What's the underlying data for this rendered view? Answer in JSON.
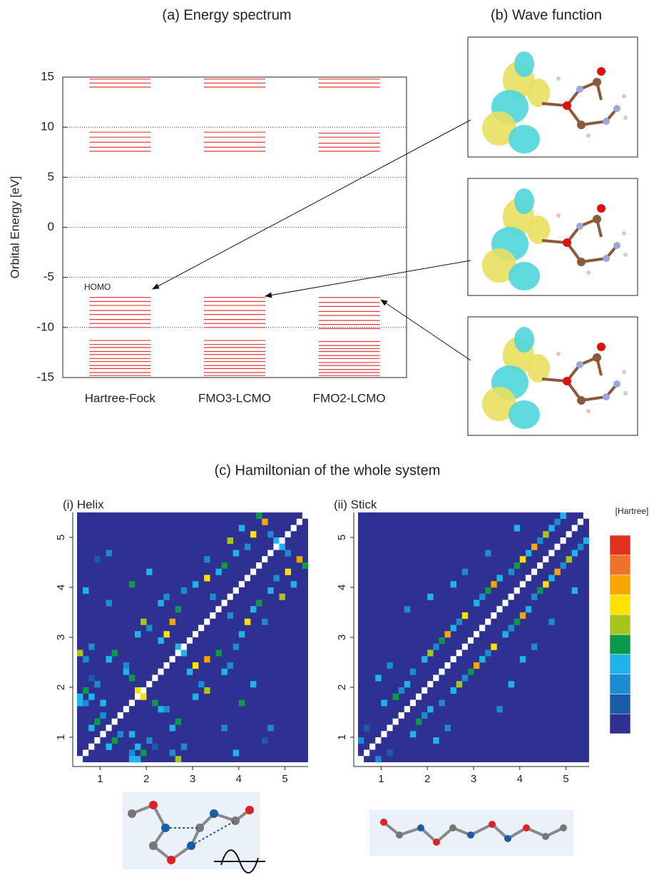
{
  "chart_data": [
    {
      "type": "levels",
      "title": "(a) Energy spectrum",
      "ylabel": "Orbital Energy [eV]",
      "categories": [
        "Hartree-Fock",
        "FMO3-LCMO",
        "FMO2-LCMO"
      ],
      "levels": [
        [
          14.8,
          14.4,
          14.0,
          9.5,
          9.0,
          8.5,
          8.0,
          7.6,
          -7.0,
          -7.4,
          -7.8,
          -8.3,
          -8.7,
          -9.2,
          -9.6,
          -10.0,
          -11.3,
          -11.7,
          -12.0,
          -12.4,
          -12.7,
          -13.1,
          -13.4,
          -13.8,
          -14.1,
          -14.5,
          -14.8
        ],
        [
          14.8,
          14.4,
          14.0,
          9.5,
          9.0,
          8.5,
          8.0,
          7.6,
          -7.0,
          -7.4,
          -7.8,
          -8.3,
          -8.7,
          -9.2,
          -9.6,
          -10.0,
          -11.3,
          -11.7,
          -12.0,
          -12.4,
          -12.7,
          -13.1,
          -13.4,
          -13.8,
          -14.1,
          -14.5,
          -14.8
        ],
        [
          14.8,
          14.4,
          14.0,
          9.4,
          9.0,
          8.4,
          8.0,
          7.6,
          -7.0,
          -7.5,
          -7.9,
          -8.4,
          -8.8,
          -9.3,
          -9.7,
          -10.1,
          -11.4,
          -11.8,
          -12.1,
          -12.4,
          -12.8,
          -13.1,
          -13.5,
          -13.8,
          -14.2,
          -14.5,
          -14.8
        ]
      ],
      "color": "#e03a3a",
      "annotation": "HOMO",
      "ylim": [
        -15,
        15
      ],
      "yticks": [
        -15,
        -10,
        -5,
        0,
        5,
        10,
        15
      ],
      "grid": true
    },
    {
      "type": "heatmap",
      "title": "(i) Helix",
      "size": 40,
      "xlim": [
        0.5,
        5.5
      ],
      "xticks": [
        1,
        2,
        3,
        4,
        5
      ],
      "ylim": [
        0.5,
        5.5
      ],
      "yticks": [
        1,
        2,
        3,
        4,
        5
      ],
      "cells": [
        [
          9,
          0,
          3
        ],
        [
          10,
          0,
          3
        ],
        [
          9,
          1,
          2
        ],
        [
          11,
          1,
          4
        ],
        [
          10,
          2,
          3
        ],
        [
          12,
          3,
          2
        ],
        [
          13,
          2,
          1
        ],
        [
          9,
          4,
          3
        ],
        [
          16,
          1,
          2
        ],
        [
          17,
          0,
          5
        ],
        [
          18,
          2,
          2
        ],
        [
          16,
          5,
          3
        ],
        [
          17,
          6,
          4
        ],
        [
          14,
          8,
          3
        ],
        [
          13,
          9,
          4
        ],
        [
          11,
          10,
          6
        ],
        [
          15,
          8,
          2
        ],
        [
          20,
          10,
          3
        ],
        [
          22,
          11,
          5
        ],
        [
          21,
          12,
          2
        ],
        [
          19,
          14,
          3
        ],
        [
          20,
          15,
          6
        ],
        [
          22,
          16,
          7
        ],
        [
          18,
          17,
          3
        ],
        [
          25,
          14,
          3
        ],
        [
          26,
          15,
          2
        ],
        [
          24,
          17,
          4
        ],
        [
          27,
          18,
          2
        ],
        [
          28,
          20,
          3
        ],
        [
          29,
          22,
          6
        ],
        [
          26,
          23,
          2
        ],
        [
          30,
          24,
          3
        ],
        [
          31,
          25,
          4
        ],
        [
          32,
          22,
          2
        ],
        [
          33,
          27,
          3
        ],
        [
          35,
          26,
          5
        ],
        [
          34,
          29,
          2
        ],
        [
          36,
          30,
          6
        ],
        [
          37,
          28,
          3
        ],
        [
          38,
          32,
          7
        ],
        [
          36,
          33,
          2
        ],
        [
          39,
          31,
          4
        ],
        [
          35,
          34,
          3
        ],
        [
          25,
          5,
          2
        ],
        [
          28,
          9,
          4
        ],
        [
          30,
          12,
          3
        ],
        [
          6,
          3,
          4
        ],
        [
          5,
          2,
          3
        ],
        [
          7,
          4,
          2
        ],
        [
          32,
          3,
          1
        ],
        [
          33,
          5,
          2
        ],
        [
          27,
          1,
          3
        ]
      ]
    },
    {
      "type": "heatmap",
      "title": "(ii) Stick",
      "size": 40,
      "xlim": [
        0.5,
        5.5
      ],
      "xticks": [
        1,
        2,
        3,
        4,
        5
      ],
      "ylim": [
        0.5,
        5.5
      ],
      "yticks": [
        1,
        2,
        3,
        4,
        5
      ],
      "cells": [
        [
          3,
          0,
          2
        ],
        [
          5,
          1,
          1
        ],
        [
          9,
          4,
          3
        ],
        [
          10,
          6,
          4
        ],
        [
          11,
          7,
          2
        ],
        [
          12,
          8,
          3
        ],
        [
          14,
          9,
          2
        ],
        [
          16,
          11,
          3
        ],
        [
          17,
          12,
          5
        ],
        [
          18,
          13,
          2
        ],
        [
          19,
          14,
          4
        ],
        [
          20,
          15,
          7
        ],
        [
          21,
          16,
          3
        ],
        [
          22,
          17,
          2
        ],
        [
          23,
          18,
          6
        ],
        [
          25,
          20,
          3
        ],
        [
          26,
          21,
          2
        ],
        [
          27,
          22,
          4
        ],
        [
          28,
          23,
          7
        ],
        [
          29,
          24,
          3
        ],
        [
          30,
          26,
          2
        ],
        [
          31,
          27,
          4
        ],
        [
          32,
          28,
          6
        ],
        [
          33,
          29,
          3
        ],
        [
          34,
          30,
          7
        ],
        [
          35,
          31,
          2
        ],
        [
          36,
          32,
          5
        ],
        [
          37,
          33,
          3
        ],
        [
          38,
          34,
          2
        ],
        [
          39,
          35,
          3
        ],
        [
          24,
          8,
          2
        ],
        [
          26,
          12,
          3
        ],
        [
          30,
          18,
          2
        ],
        [
          13,
          3,
          3
        ],
        [
          15,
          5,
          2
        ],
        [
          28,
          16,
          3
        ],
        [
          33,
          22,
          2
        ],
        [
          37,
          27,
          3
        ]
      ]
    }
  ],
  "wave_function_title": "(b) Wave function",
  "hamiltonian_title": "(c) Hamiltonian of the whole system",
  "colorbar": {
    "label": "[Hartree]",
    "colors": [
      "#2e3192",
      "#1b5ca8",
      "#1c8bd0",
      "#1fb3ea",
      "#0a9a4a",
      "#a7c51b",
      "#ffe200",
      "#f7a600",
      "#f1712a",
      "#e1301e"
    ]
  }
}
